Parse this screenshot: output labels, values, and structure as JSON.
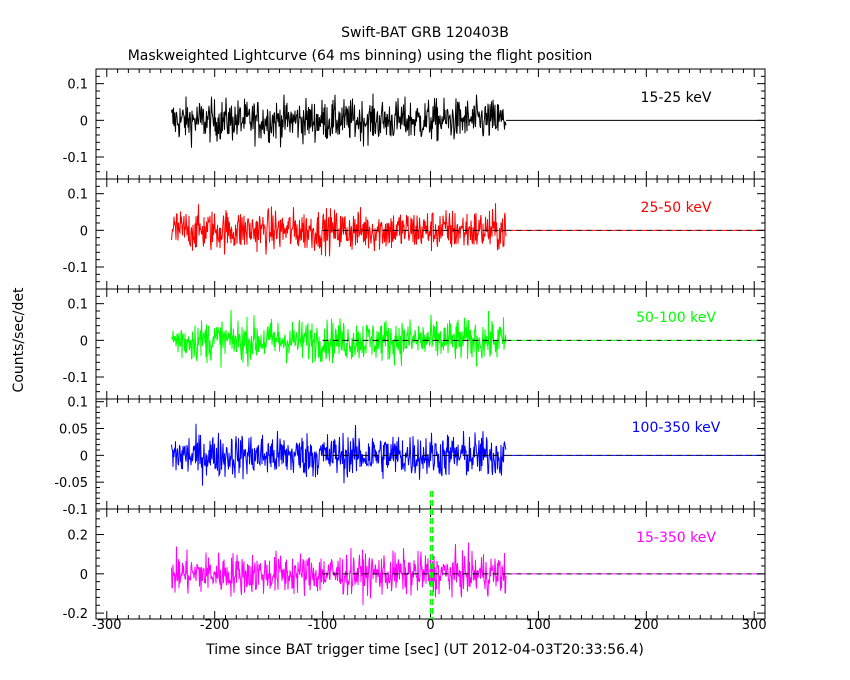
{
  "chart_data": {
    "type": "line",
    "title": "Swift-BAT GRB 120403B",
    "subtitle": "Maskweighted Lightcurve (64 ms binning) using the flight position",
    "xlabel": "Time since BAT trigger time [sec] (UT 2012-04-03T20:33:56.4)",
    "ylabel": "Counts/sec/det",
    "xlim": [
      -310,
      310
    ],
    "xticks": [
      -300,
      -200,
      -100,
      0,
      100,
      200,
      300
    ],
    "data_span": [
      -240,
      70
    ],
    "panels": [
      {
        "band": "15-25 keV",
        "color": "#000000",
        "ylim": [
          -0.16,
          0.14
        ],
        "yticks": [
          -0.1,
          0,
          0.1
        ],
        "ytick_labels": [
          "-0.1",
          "0",
          "0.1"
        ],
        "noise_amplitude": 0.075,
        "zero_line": "solid"
      },
      {
        "band": "25-50 keV",
        "color": "#ff0000",
        "ylim": [
          -0.16,
          0.14
        ],
        "yticks": [
          -0.1,
          0,
          0.1
        ],
        "ytick_labels": [
          "-0.1",
          "0",
          "0.1"
        ],
        "noise_amplitude": 0.075,
        "zero_line": "dashed"
      },
      {
        "band": "50-100 keV",
        "color": "#00ff00",
        "ylim": [
          -0.16,
          0.14
        ],
        "yticks": [
          -0.1,
          0,
          0.1
        ],
        "ytick_labels": [
          "-0.1",
          "0",
          "0.1"
        ],
        "noise_amplitude": 0.075,
        "zero_line": "dashed"
      },
      {
        "band": "100-350 keV",
        "color": "#0000ff",
        "ylim": [
          -0.1,
          0.105
        ],
        "yticks": [
          -0.1,
          -0.05,
          0,
          0.05,
          0.1
        ],
        "ytick_labels": [
          "-0.1",
          "-0.05",
          "0",
          "0.05",
          "0.1"
        ],
        "noise_amplitude": 0.055,
        "zero_line": "dashed"
      },
      {
        "band": "15-350 keV",
        "color": "#ff00ff",
        "ylim": [
          -0.23,
          0.33
        ],
        "yticks": [
          -0.2,
          0,
          0.2
        ],
        "ytick_labels": [
          "-0.2",
          "0",
          "0.2"
        ],
        "noise_amplitude": 0.14,
        "zero_line": "dashed"
      }
    ],
    "markers": [
      {
        "x": 0,
        "color": "#00ff00",
        "style": "dashed"
      },
      {
        "x": 2,
        "color": "#00ff00",
        "style": "dashed"
      }
    ]
  }
}
